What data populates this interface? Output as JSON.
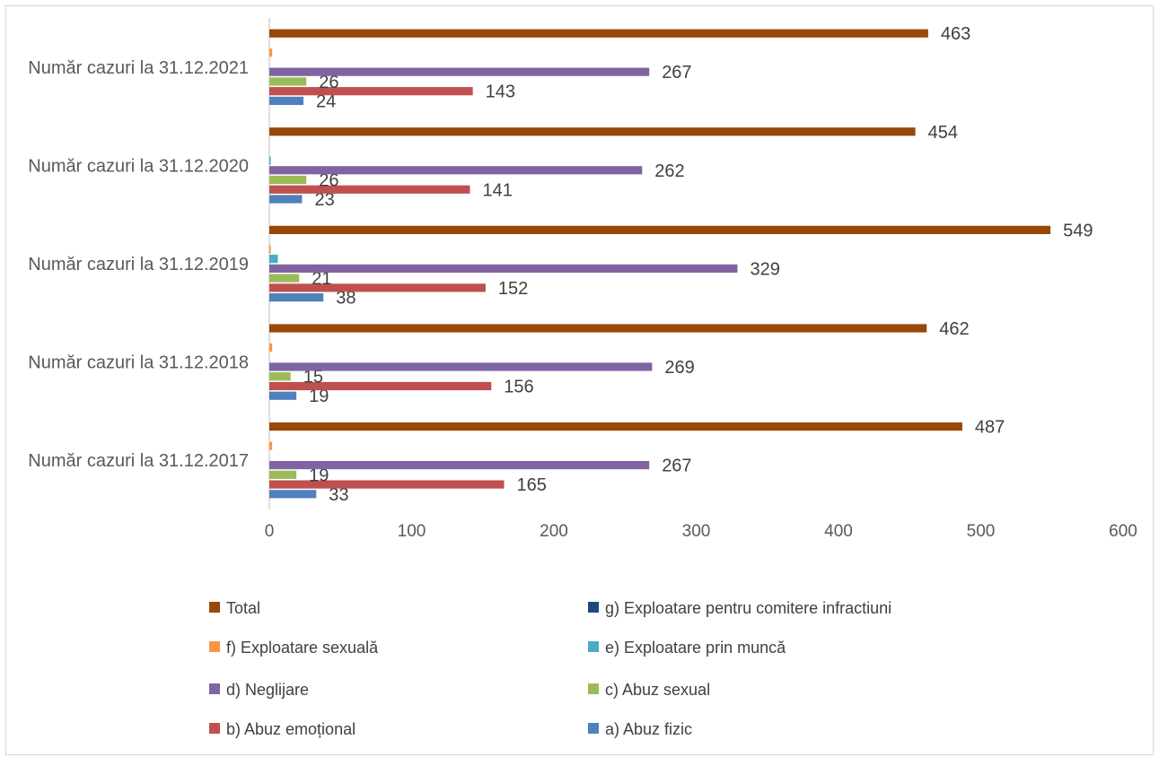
{
  "colors": {
    "background": "#ffffff",
    "border": "#d9d9d9",
    "axis": "#bfbfbf",
    "text": "#595959"
  },
  "chart_data": {
    "type": "bar",
    "orientation": "horizontal",
    "title": "",
    "xlabel": "",
    "ylabel": "",
    "xlim": [
      0,
      600
    ],
    "x_ticks": [
      0,
      100,
      200,
      300,
      400,
      500,
      600
    ],
    "grid": false,
    "legend_position": "bottom",
    "categories": [
      "Număr cazuri la 31.12.2017",
      "Număr cazuri la 31.12.2018",
      "Număr cazuri la 31.12.2019",
      "Număr cazuri la 31.12.2020",
      "Număr cazuri la 31.12.2021"
    ],
    "series": [
      {
        "name": "a) Abuz  fizic",
        "color": "#4f81bd",
        "values": [
          33,
          19,
          38,
          23,
          24
        ],
        "labels": [
          "33",
          "19",
          "38",
          "23",
          "24"
        ]
      },
      {
        "name": "b) Abuz emoțional",
        "color": "#c0504d",
        "values": [
          165,
          156,
          152,
          141,
          143
        ],
        "labels": [
          "165",
          "156",
          "152",
          "141",
          "143"
        ]
      },
      {
        "name": "c) Abuz sexual",
        "color": "#9bbb59",
        "values": [
          19,
          15,
          21,
          26,
          26
        ],
        "labels": [
          "19",
          "15",
          "21",
          "26",
          "26"
        ]
      },
      {
        "name": "d) Neglijare",
        "color": "#8064a2",
        "values": [
          267,
          269,
          329,
          262,
          267
        ],
        "labels": [
          "267",
          "269",
          "329",
          "262",
          "267"
        ]
      },
      {
        "name": "e) Exploatare prin muncă",
        "color": "#4bacc6",
        "values": [
          0,
          0,
          6,
          1,
          0
        ],
        "labels": [
          "",
          "",
          "",
          "",
          ""
        ]
      },
      {
        "name": "f) Exploatare sexuală",
        "color": "#f79646",
        "values": [
          2,
          2,
          1,
          0,
          2
        ],
        "labels": [
          "",
          "",
          "",
          "",
          ""
        ]
      },
      {
        "name": "g) Exploatare pentru comitere infractiuni",
        "color": "#1f497d",
        "values": [
          0,
          0,
          0,
          0,
          0
        ],
        "labels": [
          "",
          "",
          "",
          "",
          ""
        ]
      },
      {
        "name": "Total",
        "color": "#984807",
        "values": [
          487,
          462,
          549,
          454,
          463
        ],
        "labels": [
          "487",
          "462",
          "549",
          "454",
          "463"
        ]
      }
    ],
    "legend_order": [
      "Total",
      "g) Exploatare pentru comitere infractiuni",
      " f) Exploatare sexuală",
      "e) Exploatare prin muncă",
      "d) Neglijare",
      "c) Abuz sexual",
      "b) Abuz emoțional",
      "a) Abuz  fizic"
    ]
  }
}
